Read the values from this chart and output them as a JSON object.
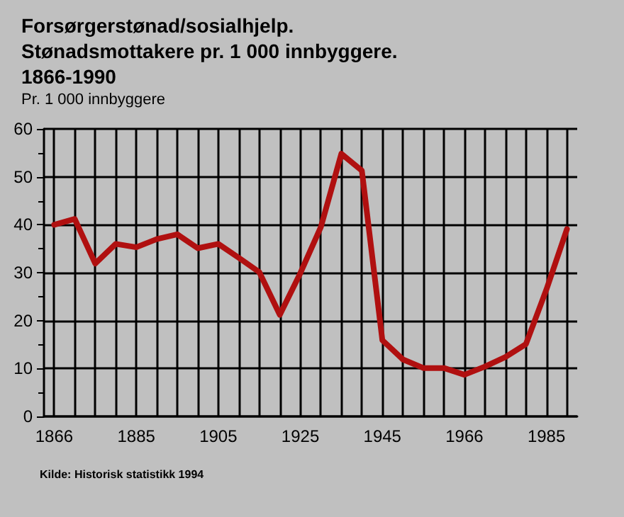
{
  "chart_data": {
    "type": "line",
    "title": "Forsørgerstønad/sosialhjelp.\nStønadsmottakere pr. 1 000 innbyggere.\n1866-1990",
    "subtitle": "Pr. 1 000 innbyggere",
    "annotations": [
      "Kilde: Historisk statistikk 1994"
    ],
    "categories": [
      "1866",
      null,
      null,
      null,
      "1885",
      null,
      null,
      null,
      "1905",
      null,
      null,
      null,
      "1925",
      null,
      null,
      null,
      "1945",
      null,
      null,
      null,
      "1966",
      null,
      null,
      null,
      "1985",
      null
    ],
    "series": [
      {
        "color": "#b01010",
        "values": [
          40.0,
          41.2,
          31.9,
          36.0,
          35.3,
          37.0,
          38.0,
          35.1,
          36.0,
          33.1,
          30.1,
          21.2,
          29.9,
          39.5,
          54.8,
          51.3,
          15.9,
          11.9,
          10.1,
          10.1,
          8.7,
          10.4,
          12.4,
          15.1,
          26.5,
          39.1
        ]
      }
    ],
    "ylim": [
      0,
      60
    ],
    "yticks": [
      0,
      10,
      20,
      30,
      40,
      50,
      60
    ],
    "grid": true,
    "marker": "none",
    "line_style": "solid"
  }
}
